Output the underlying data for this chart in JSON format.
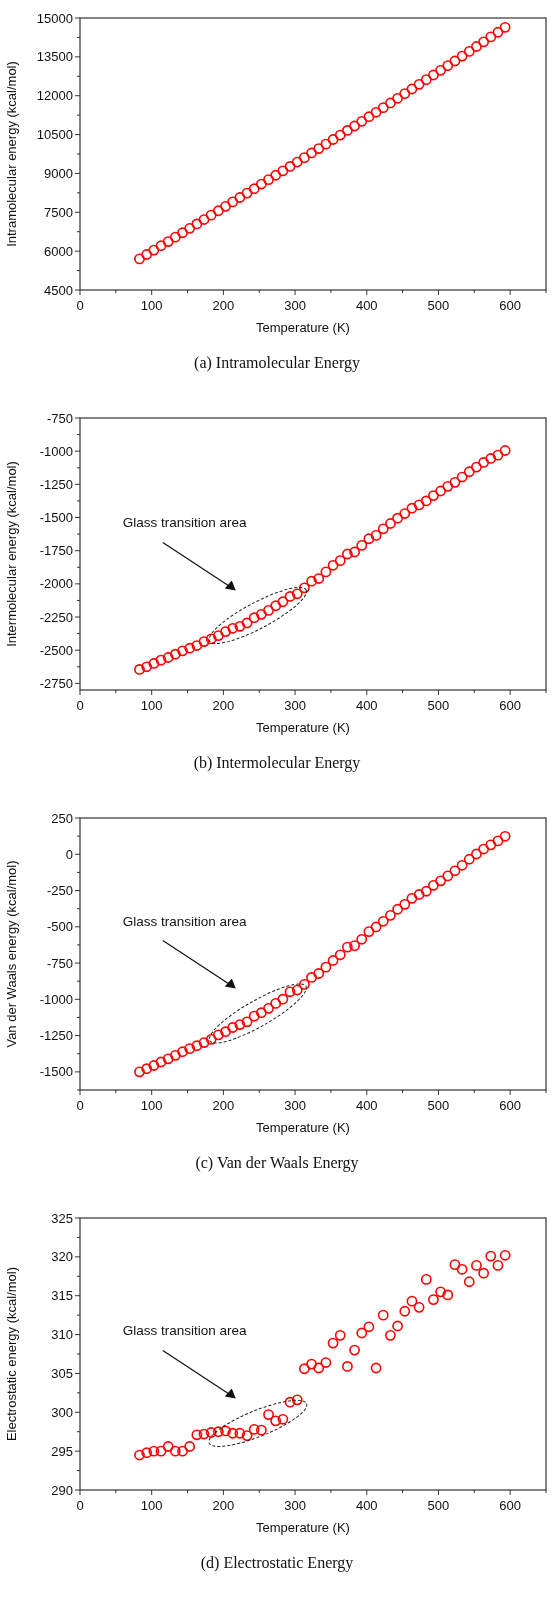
{
  "chart_data": [
    {
      "type": "scatter",
      "xlabel": "Temperature (K)",
      "ylabel": "Intramolecular energy (kcal/mol)",
      "color": "#ff0000",
      "marker": "circle",
      "grid": false,
      "xlim": [
        0,
        650
      ],
      "xticks": [
        0,
        100,
        200,
        300,
        400,
        500,
        600
      ],
      "ylim": [
        4500,
        15000
      ],
      "yticks": [
        4500,
        6000,
        7500,
        9000,
        10500,
        12000,
        13500,
        15000
      ],
      "x": [
        83,
        93,
        103,
        113,
        123,
        133,
        143,
        153,
        163,
        173,
        183,
        193,
        203,
        213,
        223,
        233,
        243,
        253,
        263,
        273,
        283,
        293,
        303,
        313,
        323,
        333,
        343,
        353,
        363,
        373,
        383,
        393,
        403,
        413,
        423,
        433,
        443,
        453,
        463,
        473,
        483,
        493,
        503,
        513,
        523,
        533,
        543,
        553,
        563,
        573,
        583,
        593
      ],
      "values": [
        5700,
        5870,
        6040,
        6210,
        6370,
        6540,
        6710,
        6880,
        7050,
        7220,
        7390,
        7560,
        7730,
        7900,
        8070,
        8240,
        8410,
        8590,
        8760,
        8930,
        9100,
        9270,
        9440,
        9610,
        9790,
        9960,
        10130,
        10310,
        10480,
        10660,
        10830,
        11010,
        11190,
        11360,
        11540,
        11720,
        11900,
        12080,
        12260,
        12440,
        12620,
        12800,
        12980,
        13160,
        13340,
        13530,
        13710,
        13900,
        14080,
        14270,
        14450,
        14640
      ],
      "annotations": [
        "(a) Intramolecular Energy"
      ]
    },
    {
      "type": "scatter",
      "xlabel": "Temperature (K)",
      "ylabel": "Intermolecular energy (kcal/mol)",
      "color": "#ff0000",
      "marker": "circle",
      "grid": false,
      "xlim": [
        0,
        650
      ],
      "xticks": [
        0,
        100,
        200,
        300,
        400,
        500,
        600
      ],
      "ylim": [
        -2800,
        -750
      ],
      "yticks": [
        -2750,
        -2500,
        -2250,
        -2000,
        -1750,
        -1500,
        -1250,
        -1000,
        -750
      ],
      "x": [
        83,
        93,
        103,
        113,
        123,
        133,
        143,
        153,
        163,
        173,
        183,
        193,
        203,
        213,
        223,
        233,
        243,
        253,
        263,
        273,
        283,
        293,
        303,
        313,
        323,
        333,
        343,
        353,
        363,
        373,
        383,
        393,
        403,
        413,
        423,
        433,
        443,
        453,
        463,
        473,
        483,
        493,
        503,
        513,
        523,
        533,
        543,
        553,
        563,
        573,
        583,
        593
      ],
      "values": [
        -2645,
        -2625,
        -2600,
        -2575,
        -2555,
        -2530,
        -2505,
        -2485,
        -2465,
        -2435,
        -2415,
        -2390,
        -2360,
        -2335,
        -2320,
        -2295,
        -2255,
        -2230,
        -2200,
        -2165,
        -2135,
        -2095,
        -2075,
        -2030,
        -1980,
        -1960,
        -1910,
        -1860,
        -1825,
        -1775,
        -1760,
        -1710,
        -1660,
        -1635,
        -1585,
        -1545,
        -1505,
        -1470,
        -1430,
        -1405,
        -1375,
        -1335,
        -1300,
        -1265,
        -1235,
        -1195,
        -1155,
        -1120,
        -1085,
        -1055,
        -1030,
        -995
      ],
      "annotations": [
        "(b) Intermolecular Energy",
        "Glass transition area"
      ]
    },
    {
      "type": "scatter",
      "xlabel": "Temperature (K)",
      "ylabel": "Van der Waals energy (kcal/mol)",
      "color": "#ff0000",
      "marker": "circle",
      "grid": false,
      "xlim": [
        0,
        650
      ],
      "xticks": [
        0,
        100,
        200,
        300,
        400,
        500,
        600
      ],
      "ylim": [
        -1625,
        250
      ],
      "yticks": [
        -1500,
        -1250,
        -1000,
        -750,
        -500,
        -250,
        0,
        250
      ],
      "x": [
        83,
        93,
        103,
        113,
        123,
        133,
        143,
        153,
        163,
        173,
        183,
        193,
        203,
        213,
        223,
        233,
        243,
        253,
        263,
        273,
        283,
        293,
        303,
        313,
        323,
        333,
        343,
        353,
        363,
        373,
        383,
        393,
        403,
        413,
        423,
        433,
        443,
        453,
        463,
        473,
        483,
        493,
        503,
        513,
        523,
        533,
        543,
        553,
        563,
        573,
        583,
        593
      ],
      "values": [
        -1500,
        -1478,
        -1456,
        -1432,
        -1410,
        -1386,
        -1361,
        -1340,
        -1320,
        -1298,
        -1276,
        -1245,
        -1223,
        -1194,
        -1174,
        -1155,
        -1116,
        -1092,
        -1062,
        -1028,
        -999,
        -948,
        -936,
        -897,
        -849,
        -822,
        -778,
        -732,
        -693,
        -640,
        -630,
        -586,
        -533,
        -501,
        -462,
        -421,
        -379,
        -345,
        -304,
        -277,
        -255,
        -214,
        -183,
        -149,
        -114,
        -76,
        -34,
        2,
        36,
        65,
        92,
        124
      ],
      "annotations": [
        "(c) Van der Waals Energy",
        "Glass transition area"
      ]
    },
    {
      "type": "scatter",
      "xlabel": "Temperature (K)",
      "ylabel": "Electrostatic energy (kcal/mol)",
      "color": "#ff0000",
      "marker": "circle",
      "grid": false,
      "xlim": [
        0,
        650
      ],
      "xticks": [
        0,
        100,
        200,
        300,
        400,
        500,
        600
      ],
      "ylim": [
        290,
        325
      ],
      "yticks": [
        290,
        295,
        300,
        305,
        310,
        315,
        320,
        325
      ],
      "x": [
        83,
        93,
        103,
        113,
        123,
        133,
        143,
        153,
        163,
        173,
        183,
        193,
        203,
        213,
        223,
        233,
        243,
        253,
        263,
        273,
        283,
        293,
        303,
        313,
        323,
        333,
        343,
        353,
        363,
        373,
        383,
        393,
        403,
        413,
        423,
        433,
        443,
        453,
        463,
        473,
        483,
        493,
        503,
        513,
        523,
        533,
        543,
        553,
        563,
        573,
        583,
        593
      ],
      "values": [
        294.5,
        294.8,
        295.0,
        295.0,
        295.6,
        295.0,
        295.0,
        295.6,
        297.1,
        297.2,
        297.4,
        297.5,
        297.6,
        297.3,
        297.3,
        297.0,
        297.8,
        297.7,
        299.7,
        298.9,
        299.1,
        301.3,
        301.6,
        305.6,
        306.2,
        305.7,
        306.4,
        308.9,
        309.9,
        305.9,
        308.0,
        310.2,
        311.0,
        305.7,
        312.5,
        309.9,
        311.1,
        313.0,
        314.3,
        313.5,
        317.1,
        314.5,
        315.5,
        315.1,
        319.0,
        318.4,
        316.8,
        318.9,
        317.9,
        320.1,
        318.9,
        320.2
      ],
      "annotations": [
        "(d) Electrostatic Energy",
        "Glass transition area"
      ]
    }
  ]
}
